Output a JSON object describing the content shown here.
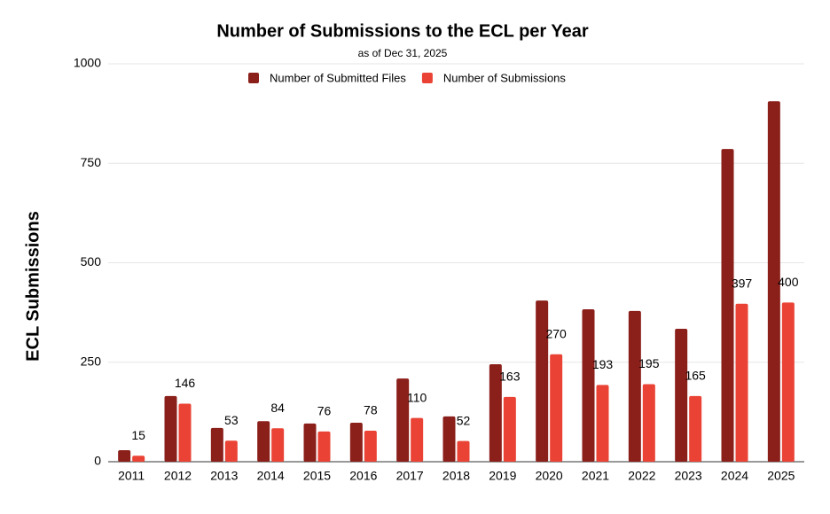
{
  "chart_data": {
    "type": "bar",
    "title": "Number of Submissions to the ECL per Year",
    "subtitle": "as of Dec 31, 2025",
    "y_label": "ECL Submissions",
    "categories": [
      "2011",
      "2012",
      "2013",
      "2014",
      "2015",
      "2016",
      "2017",
      "2018",
      "2019",
      "2020",
      "2021",
      "2022",
      "2023",
      "2024",
      "2025"
    ],
    "series": [
      {
        "name": "Number of Submitted Files",
        "color": "#8b1f1a",
        "data_labels": false,
        "values": [
          29,
          165,
          85,
          102,
          96,
          98,
          209,
          114,
          245,
          405,
          383,
          379,
          334,
          786,
          906
        ]
      },
      {
        "name": "Number of Submissions",
        "color": "#ea4335",
        "data_labels": true,
        "values": [
          15,
          146,
          53,
          84,
          76,
          78,
          110,
          52,
          163,
          270,
          193,
          195,
          165,
          397,
          400
        ]
      }
    ],
    "ylim": [
      0,
      1000
    ],
    "yticks": [
      0,
      250,
      500,
      750,
      1000
    ],
    "grid": true,
    "legend": "top"
  }
}
